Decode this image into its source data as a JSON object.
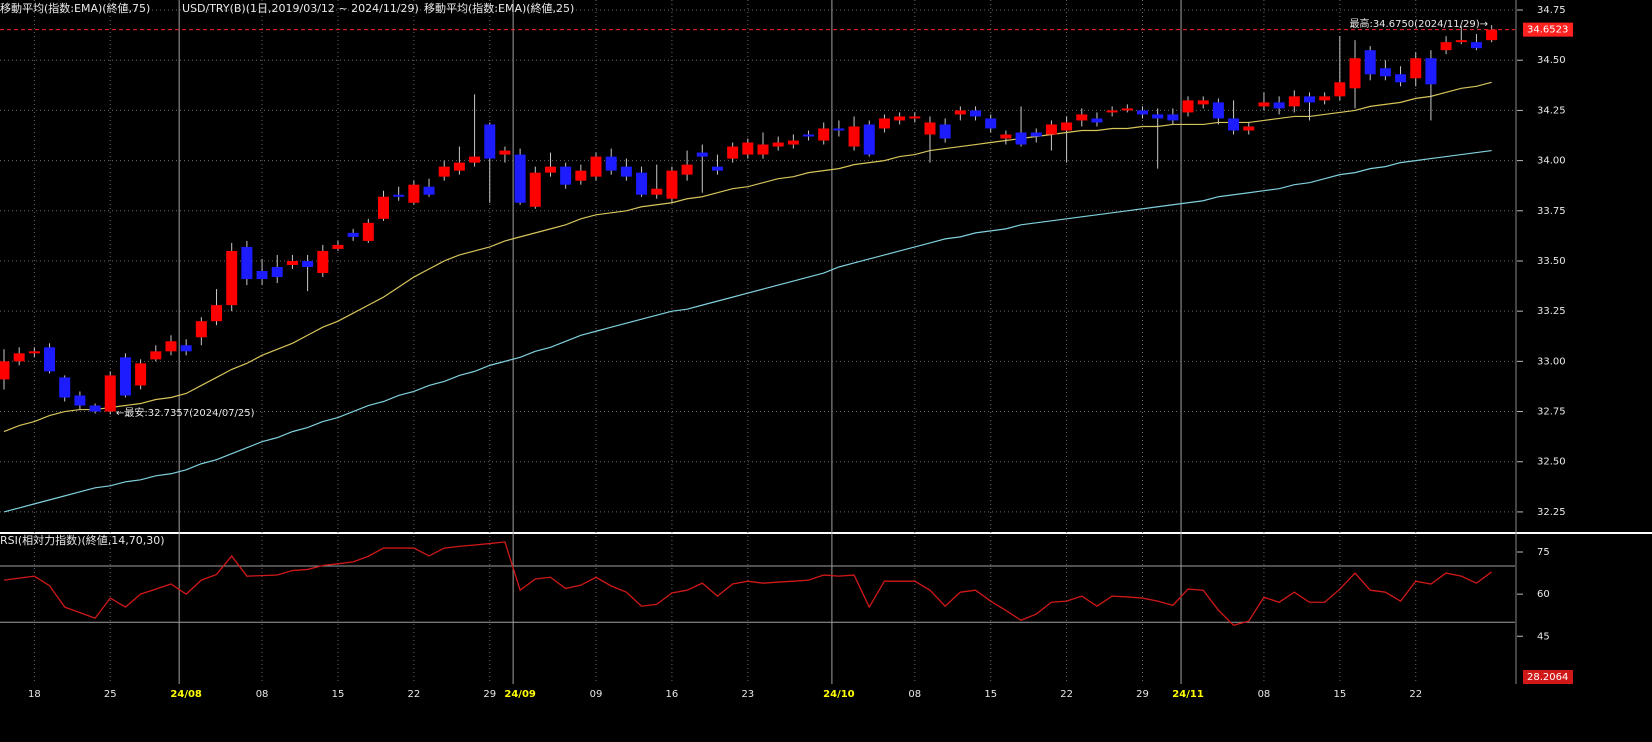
{
  "chart_data": [
    {
      "type": "candlestick",
      "title": "USD/TRY(B)(1日,2019/03/12 ~ 2024/11/29)",
      "categories": [
        null,
        null,
        "18",
        null,
        null,
        null,
        null,
        "25",
        null,
        null,
        null,
        null,
        "24/08",
        null,
        null,
        null,
        null,
        "08",
        null,
        null,
        null,
        null,
        "15",
        null,
        null,
        null,
        null,
        "22",
        null,
        null,
        null,
        null,
        "29",
        null,
        "24/09",
        null,
        null,
        null,
        null,
        "09",
        null,
        null,
        null,
        null,
        "16",
        null,
        null,
        null,
        null,
        "23",
        null,
        null,
        null,
        null,
        null,
        "24/10",
        null,
        null,
        null,
        null,
        "08",
        null,
        null,
        null,
        null,
        "15",
        null,
        null,
        null,
        null,
        "22",
        null,
        null,
        null,
        null,
        "29",
        null,
        null,
        "24/11",
        null,
        null,
        null,
        null,
        "08",
        null,
        null,
        null,
        null,
        "15",
        null,
        null,
        null,
        null,
        "22",
        null,
        null,
        null,
        null,
        null
      ],
      "open": [
        32.91,
        33.0,
        33.04,
        33.07,
        32.92,
        32.83,
        32.78,
        32.75,
        33.02,
        32.88,
        33.01,
        33.05,
        33.08,
        33.12,
        33.2,
        33.28,
        33.57,
        33.45,
        33.47,
        33.48,
        33.5,
        33.44,
        33.56,
        33.64,
        33.6,
        33.71,
        33.83,
        33.79,
        33.87,
        33.92,
        33.95,
        33.99,
        34.18,
        34.03,
        34.03,
        33.77,
        33.94,
        33.97,
        33.9,
        33.92,
        34.02,
        33.97,
        33.94,
        33.83,
        33.81,
        33.93,
        34.04,
        33.97,
        34.01,
        34.03,
        34.03,
        34.07,
        34.08,
        34.13,
        34.1,
        34.16,
        34.07,
        34.18,
        34.16,
        34.2,
        34.21,
        34.13,
        34.18,
        34.23,
        34.25,
        34.21,
        34.11,
        34.14,
        34.14,
        34.13,
        34.15,
        34.2,
        34.21,
        34.24,
        34.25,
        34.25,
        34.23,
        34.23,
        34.24,
        34.28,
        34.29,
        34.21,
        34.15,
        34.27,
        34.29,
        34.27,
        34.32,
        34.3,
        34.32,
        34.36,
        34.55,
        34.46,
        34.43,
        34.41,
        34.51,
        34.55,
        34.59,
        34.59,
        34.6
      ],
      "high": [
        33.06,
        33.07,
        33.07,
        33.09,
        32.93,
        32.85,
        32.79,
        32.95,
        33.04,
        33.01,
        33.08,
        33.13,
        33.11,
        33.22,
        33.36,
        33.59,
        33.6,
        33.51,
        33.53,
        33.53,
        33.53,
        33.58,
        33.6,
        33.66,
        33.71,
        33.85,
        33.87,
        33.9,
        33.91,
        34.0,
        34.07,
        34.33,
        34.19,
        34.07,
        34.06,
        33.97,
        34.04,
        33.99,
        33.98,
        34.04,
        34.06,
        34.01,
        33.97,
        33.98,
        33.97,
        34.05,
        34.08,
        34.03,
        34.09,
        34.11,
        34.14,
        34.12,
        34.13,
        34.15,
        34.19,
        34.2,
        34.22,
        34.2,
        34.23,
        34.24,
        34.24,
        34.22,
        34.21,
        34.27,
        34.27,
        34.23,
        34.15,
        34.27,
        34.16,
        34.2,
        34.22,
        34.26,
        34.24,
        34.27,
        34.28,
        34.27,
        34.26,
        34.26,
        34.32,
        34.32,
        34.31,
        34.3,
        34.19,
        34.34,
        34.32,
        34.35,
        34.34,
        34.34,
        34.62,
        34.6,
        34.57,
        34.5,
        34.47,
        34.54,
        34.55,
        34.62,
        34.67,
        34.63,
        34.675
      ],
      "low": [
        32.86,
        32.98,
        33.02,
        32.94,
        32.8,
        32.76,
        32.74,
        32.7357,
        32.82,
        32.86,
        33.0,
        33.03,
        33.03,
        33.08,
        33.18,
        33.25,
        33.38,
        33.38,
        33.39,
        33.46,
        33.35,
        33.42,
        33.55,
        33.6,
        33.59,
        33.7,
        33.8,
        33.78,
        33.82,
        33.9,
        33.93,
        33.97,
        33.79,
        33.99,
        33.78,
        33.76,
        33.92,
        33.86,
        33.88,
        33.9,
        33.93,
        33.9,
        33.82,
        33.81,
        33.79,
        33.9,
        33.84,
        33.93,
        33.99,
        34.01,
        34.01,
        34.05,
        34.06,
        34.1,
        34.08,
        34.12,
        34.05,
        34.02,
        34.14,
        34.18,
        34.19,
        33.99,
        34.09,
        34.2,
        34.2,
        34.14,
        34.08,
        34.07,
        34.09,
        34.05,
        33.99,
        34.17,
        34.17,
        34.22,
        34.24,
        34.21,
        33.96,
        34.18,
        34.22,
        34.26,
        34.18,
        34.13,
        34.13,
        34.25,
        34.23,
        34.24,
        34.2,
        34.28,
        34.3,
        34.26,
        34.4,
        34.4,
        34.37,
        34.37,
        34.2,
        34.53,
        34.58,
        34.55,
        34.59
      ],
      "close": [
        33.0,
        33.04,
        33.05,
        32.95,
        32.82,
        32.78,
        32.75,
        32.93,
        32.83,
        32.99,
        33.05,
        33.1,
        33.05,
        33.2,
        33.28,
        33.55,
        33.41,
        33.41,
        33.42,
        33.5,
        33.47,
        33.55,
        33.58,
        33.62,
        33.69,
        33.82,
        33.82,
        33.88,
        33.83,
        33.97,
        33.99,
        34.02,
        34.01,
        34.05,
        33.79,
        33.94,
        33.97,
        33.88,
        33.95,
        34.02,
        33.95,
        33.92,
        33.83,
        33.86,
        33.95,
        33.98,
        34.02,
        33.95,
        34.07,
        34.09,
        34.08,
        34.09,
        34.1,
        34.12,
        34.16,
        34.15,
        34.17,
        34.03,
        34.21,
        34.22,
        34.22,
        34.19,
        34.11,
        34.25,
        34.22,
        34.16,
        34.13,
        34.08,
        34.12,
        34.18,
        34.19,
        34.23,
        34.19,
        34.25,
        34.26,
        34.23,
        34.21,
        34.2,
        34.3,
        34.3,
        34.21,
        34.15,
        34.17,
        34.29,
        34.26,
        34.32,
        34.29,
        34.32,
        34.39,
        34.51,
        34.43,
        34.42,
        34.39,
        34.51,
        34.38,
        34.59,
        34.6,
        34.56,
        34.6523
      ],
      "up_color": "#ff0000",
      "down_color": "#1c1cff",
      "wick_color": "#c8c8c8",
      "series": [
        {
          "name": "移動平均(指数:EMA)(終値,75)",
          "color": "#7fd0dc",
          "values": [
            32.25,
            32.27,
            32.29,
            32.31,
            32.33,
            32.35,
            32.37,
            32.38,
            32.4,
            32.41,
            32.43,
            32.44,
            32.46,
            32.49,
            32.51,
            32.54,
            32.57,
            32.6,
            32.62,
            32.65,
            32.67,
            32.7,
            32.72,
            32.75,
            32.78,
            32.8,
            32.83,
            32.85,
            32.88,
            32.9,
            32.93,
            32.95,
            32.98,
            33.0,
            33.02,
            33.05,
            33.07,
            33.1,
            33.13,
            33.15,
            33.17,
            33.19,
            33.21,
            33.23,
            33.25,
            33.26,
            33.28,
            33.3,
            33.32,
            33.34,
            33.36,
            33.38,
            33.4,
            33.42,
            33.44,
            33.47,
            33.49,
            33.51,
            33.53,
            33.55,
            33.57,
            33.59,
            33.61,
            33.62,
            33.64,
            33.65,
            33.66,
            33.68,
            33.69,
            33.7,
            33.71,
            33.72,
            33.73,
            33.74,
            33.75,
            33.76,
            33.77,
            33.78,
            33.79,
            33.8,
            33.82,
            33.83,
            33.84,
            33.85,
            33.86,
            33.88,
            33.89,
            33.91,
            33.93,
            33.94,
            33.96,
            33.97,
            33.99,
            34.0,
            34.01,
            34.02,
            34.03,
            34.04,
            34.05
          ]
        },
        {
          "name": "移動平均(指数:EMA)(終値,25)",
          "color": "#d6c45a",
          "values": [
            32.65,
            32.68,
            32.7,
            32.73,
            32.75,
            32.76,
            32.76,
            32.77,
            32.78,
            32.79,
            32.81,
            32.82,
            32.84,
            32.88,
            32.92,
            32.96,
            32.99,
            33.03,
            33.06,
            33.09,
            33.13,
            33.17,
            33.2,
            33.24,
            33.28,
            33.32,
            33.37,
            33.42,
            33.46,
            33.5,
            33.53,
            33.55,
            33.57,
            33.6,
            33.62,
            33.64,
            33.66,
            33.68,
            33.71,
            33.73,
            33.74,
            33.75,
            33.77,
            33.78,
            33.79,
            33.81,
            33.82,
            33.84,
            33.86,
            33.87,
            33.89,
            33.91,
            33.92,
            33.94,
            33.95,
            33.96,
            33.98,
            33.99,
            34.0,
            34.02,
            34.03,
            34.05,
            34.06,
            34.07,
            34.08,
            34.09,
            34.1,
            34.11,
            34.12,
            34.13,
            34.14,
            34.15,
            34.15,
            34.16,
            34.16,
            34.17,
            34.17,
            34.18,
            34.18,
            34.18,
            34.19,
            34.19,
            34.19,
            34.2,
            34.21,
            34.22,
            34.22,
            34.23,
            34.24,
            34.25,
            34.27,
            34.28,
            34.29,
            34.31,
            34.32,
            34.34,
            34.36,
            34.37,
            34.39
          ]
        }
      ],
      "ylim": [
        32.15,
        34.79
      ],
      "yticks": [
        34.75,
        {
          "value": 34.5,
          "label": "34.50"
        },
        34.25,
        {
          "value": 34,
          "label": "34.00"
        },
        33.75,
        {
          "value": 33.5,
          "label": "33.50"
        },
        33.25,
        {
          "value": 33,
          "label": "33.00"
        },
        32.75,
        {
          "value": 32.5,
          "label": "32.50"
        },
        32.25
      ],
      "grid": true,
      "last_price": 34.6523,
      "last_price_color": "#ff2020",
      "annotations": [
        "最高:34.6750(2024/11/29)→",
        "←最安:32.7357(2024/07/25)"
      ]
    },
    {
      "type": "line",
      "title": "RSI(相対力指数)(終値,14,70,30)",
      "color": "#d01818",
      "values": [
        65,
        65.7,
        66.4,
        63,
        55.4,
        53.4,
        51.4,
        58.6,
        55.4,
        60,
        61.8,
        63.6,
        60,
        65,
        67,
        73.6,
        66.4,
        66.6,
        66.8,
        68.4,
        68.8,
        70.2,
        70.8,
        71.5,
        73.5,
        76.4,
        76.4,
        76.4,
        73.6,
        76.4,
        77,
        77.5,
        78,
        78.6,
        61.4,
        65.4,
        66,
        62,
        63.2,
        66,
        62.9,
        60.7,
        55.7,
        56.4,
        60.4,
        61.4,
        63.9,
        59.3,
        63.6,
        64.6,
        63.9,
        64.3,
        64.6,
        65,
        66.8,
        66.4,
        66.8,
        55.4,
        64.6,
        64.6,
        64.6,
        61.4,
        55.7,
        60.7,
        61.4,
        57.5,
        54.2,
        50.7,
        52.9,
        57.1,
        57.5,
        59.3,
        55.7,
        59.3,
        59,
        58.6,
        57.5,
        56,
        61.8,
        61.4,
        54.3,
        48.9,
        50.4,
        58.9,
        57.1,
        60.7,
        57.1,
        57.1,
        61.8,
        67.5,
        61.4,
        60.7,
        57.5,
        64.6,
        63.6,
        67.5,
        66.4,
        63.9,
        67.9
      ],
      "ylim": [
        28,
        80.7
      ],
      "yticks": [
        75,
        60,
        45
      ],
      "levels": [
        70,
        50
      ],
      "marker": 28.2064
    }
  ]
}
